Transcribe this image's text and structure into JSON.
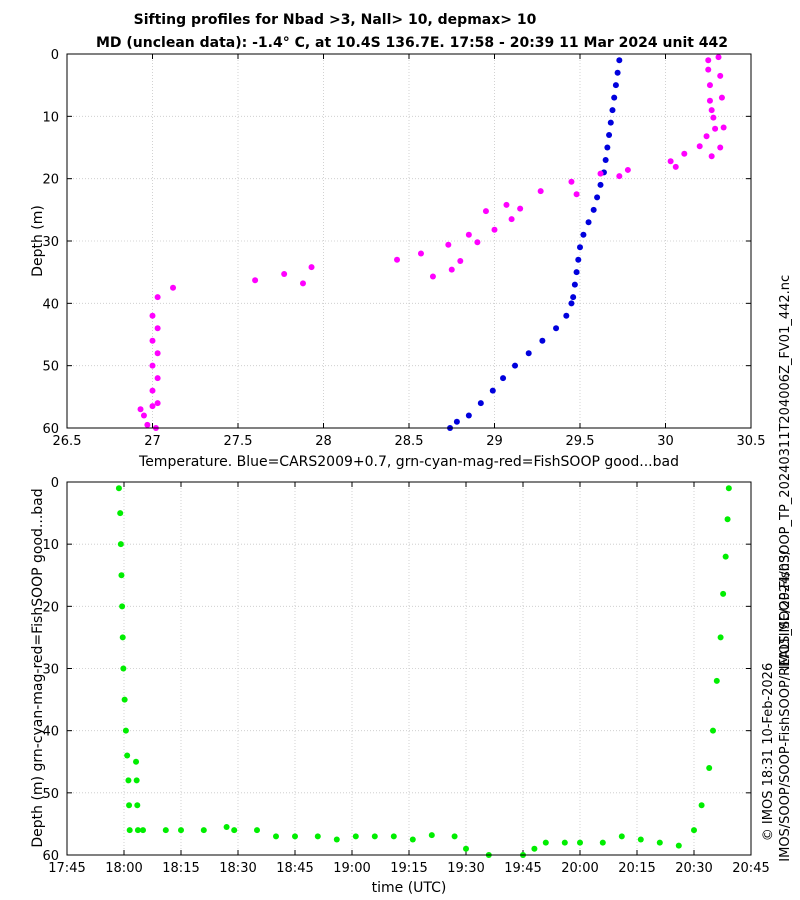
{
  "title_line1": "Sifting profiles for Nbad >3, Nall> 10, depmax> 10",
  "title_line2": "MD (unclean data): -1.4° C, at 10.4S 136.7E. 17:58 - 20:39 11 Mar 2024 unit 442",
  "side_filename": "IMOS_SOOP-FishSOOP_TP_20240311T204006Z_FV01_442.nc",
  "side_path": "IMOS/SOOP/SOOP-FishSOOP/REALTIME/2024/03/",
  "side_credit": "© IMOS 18:31 10-Feb-2026",
  "chart_data": [
    {
      "type": "scatter",
      "xlabel": "Temperature. Blue=CARS2009+0.7, grn-cyan-mag-red=FishSOOP good...bad",
      "ylabel": "Depth (m)",
      "xlim": [
        26.5,
        30.5
      ],
      "ylim": [
        0,
        60
      ],
      "y_reversed": true,
      "grid": true,
      "xticks": [
        "26.5",
        "27",
        "27.5",
        "28",
        "28.5",
        "29",
        "29.5",
        "30",
        "30.5"
      ],
      "yticks": [
        "0",
        "10",
        "20",
        "30",
        "40",
        "50",
        "60"
      ],
      "series": [
        {
          "color": "#0000dd",
          "marker": "dot",
          "points": [
            [
              29.73,
              1
            ],
            [
              29.72,
              3
            ],
            [
              29.71,
              5
            ],
            [
              29.7,
              7
            ],
            [
              29.69,
              9
            ],
            [
              29.68,
              11
            ],
            [
              29.67,
              13
            ],
            [
              29.66,
              15
            ],
            [
              29.65,
              17
            ],
            [
              29.64,
              19
            ],
            [
              29.62,
              21
            ],
            [
              29.6,
              23
            ],
            [
              29.58,
              25
            ],
            [
              29.55,
              27
            ],
            [
              29.52,
              29
            ],
            [
              29.5,
              31
            ],
            [
              29.49,
              33
            ],
            [
              29.48,
              35
            ],
            [
              29.47,
              37
            ],
            [
              29.46,
              39
            ],
            [
              29.45,
              40
            ],
            [
              29.42,
              42
            ],
            [
              29.36,
              44
            ],
            [
              29.28,
              46
            ],
            [
              29.2,
              48
            ],
            [
              29.12,
              50
            ],
            [
              29.05,
              52
            ],
            [
              28.99,
              54
            ],
            [
              28.92,
              56
            ],
            [
              28.85,
              58
            ],
            [
              28.78,
              59
            ],
            [
              28.74,
              60
            ]
          ]
        },
        {
          "color": "#ff00ff",
          "marker": "dot",
          "points": [
            [
              26.93,
              57
            ],
            [
              26.95,
              58
            ],
            [
              26.97,
              59.5
            ],
            [
              27.0,
              56.5
            ],
            [
              27.0,
              54
            ],
            [
              27.0,
              50
            ],
            [
              27.0,
              46
            ],
            [
              27.0,
              42
            ],
            [
              27.03,
              39
            ],
            [
              27.03,
              56
            ],
            [
              27.03,
              52
            ],
            [
              27.03,
              48
            ],
            [
              27.03,
              44
            ],
            [
              27.02,
              60
            ],
            [
              27.12,
              37.5
            ],
            [
              27.6,
              36.3
            ],
            [
              27.77,
              35.3
            ],
            [
              27.88,
              36.8
            ],
            [
              27.93,
              34.2
            ],
            [
              28.43,
              33
            ],
            [
              28.57,
              32
            ],
            [
              28.64,
              35.7
            ],
            [
              28.73,
              30.6
            ],
            [
              28.75,
              34.6
            ],
            [
              28.8,
              33.2
            ],
            [
              28.85,
              29
            ],
            [
              28.9,
              30.2
            ],
            [
              28.95,
              25.2
            ],
            [
              29.0,
              28.2
            ],
            [
              29.07,
              24.2
            ],
            [
              29.1,
              26.5
            ],
            [
              29.15,
              24.8
            ],
            [
              29.27,
              22
            ],
            [
              29.45,
              20.5
            ],
            [
              29.48,
              22.5
            ],
            [
              29.62,
              19.2
            ],
            [
              29.73,
              19.6
            ],
            [
              29.78,
              18.6
            ],
            [
              30.03,
              17.2
            ],
            [
              30.06,
              18.1
            ],
            [
              30.11,
              16
            ],
            [
              30.2,
              14.8
            ],
            [
              30.24,
              13.2
            ],
            [
              30.27,
              16.4
            ],
            [
              30.25,
              1
            ],
            [
              30.26,
              5
            ],
            [
              30.27,
              9
            ],
            [
              30.29,
              12
            ],
            [
              30.31,
              0.5
            ],
            [
              30.32,
              3.5
            ],
            [
              30.33,
              7
            ],
            [
              30.34,
              11.8
            ],
            [
              30.32,
              15
            ],
            [
              30.25,
              2.5
            ],
            [
              30.26,
              7.5
            ],
            [
              30.28,
              10.2
            ]
          ]
        }
      ]
    },
    {
      "type": "scatter",
      "xlabel": "time (UTC)",
      "ylabel": "Depth (m) grn-cyan-mag-red=FishSOOP good...bad",
      "xlim": [
        "17:45",
        "20:45"
      ],
      "ylim": [
        0,
        60
      ],
      "y_reversed": true,
      "grid": true,
      "xticks": [
        "17:45",
        "18:00",
        "18:15",
        "18:30",
        "18:45",
        "19:00",
        "19:15",
        "19:30",
        "19:45",
        "20:00",
        "20:15",
        "20:30",
        "20:45"
      ],
      "yticks": [
        "0",
        "10",
        "20",
        "30",
        "40",
        "50",
        "60"
      ],
      "series": [
        {
          "color": "#00ee00",
          "marker": "dot",
          "points": [
            [
              "17:58:40",
              1
            ],
            [
              "17:59:00",
              5
            ],
            [
              "17:59:10",
              10
            ],
            [
              "17:59:20",
              15
            ],
            [
              "17:59:30",
              20
            ],
            [
              "17:59:40",
              25
            ],
            [
              "17:59:50",
              30
            ],
            [
              "18:00:10",
              35
            ],
            [
              "18:00:30",
              40
            ],
            [
              "18:00:50",
              44
            ],
            [
              "18:01:10",
              48
            ],
            [
              "18:01:20",
              52
            ],
            [
              "18:01:30",
              56
            ],
            [
              "18:03:10",
              45
            ],
            [
              "18:03:20",
              48
            ],
            [
              "18:03:30",
              52
            ],
            [
              "18:03:40",
              56
            ],
            [
              "18:05:00",
              56
            ],
            [
              "18:11:00",
              56
            ],
            [
              "18:15:00",
              56
            ],
            [
              "18:21:00",
              56
            ],
            [
              "18:27:00",
              55.5
            ],
            [
              "18:29:00",
              56
            ],
            [
              "18:35:00",
              56
            ],
            [
              "18:40:00",
              57
            ],
            [
              "18:45:00",
              57
            ],
            [
              "18:51:00",
              57
            ],
            [
              "18:56:00",
              57.5
            ],
            [
              "19:01:00",
              57
            ],
            [
              "19:06:00",
              57
            ],
            [
              "19:11:00",
              57
            ],
            [
              "19:16:00",
              57.5
            ],
            [
              "19:21:00",
              56.8
            ],
            [
              "19:27:00",
              57
            ],
            [
              "19:30:00",
              59
            ],
            [
              "19:36:00",
              60
            ],
            [
              "19:45:00",
              60
            ],
            [
              "19:48:00",
              59
            ],
            [
              "19:51:00",
              58
            ],
            [
              "19:56:00",
              58
            ],
            [
              "20:00:00",
              58
            ],
            [
              "20:06:00",
              58
            ],
            [
              "20:11:00",
              57
            ],
            [
              "20:16:00",
              57.5
            ],
            [
              "20:21:00",
              58
            ],
            [
              "20:26:00",
              58.5
            ],
            [
              "20:30:00",
              56
            ],
            [
              "20:32:00",
              52
            ],
            [
              "20:34:00",
              46
            ],
            [
              "20:35:00",
              40
            ],
            [
              "20:36:00",
              32
            ],
            [
              "20:37:00",
              25
            ],
            [
              "20:37:40",
              18
            ],
            [
              "20:38:20",
              12
            ],
            [
              "20:38:50",
              6
            ],
            [
              "20:39:10",
              1
            ]
          ]
        }
      ]
    }
  ]
}
